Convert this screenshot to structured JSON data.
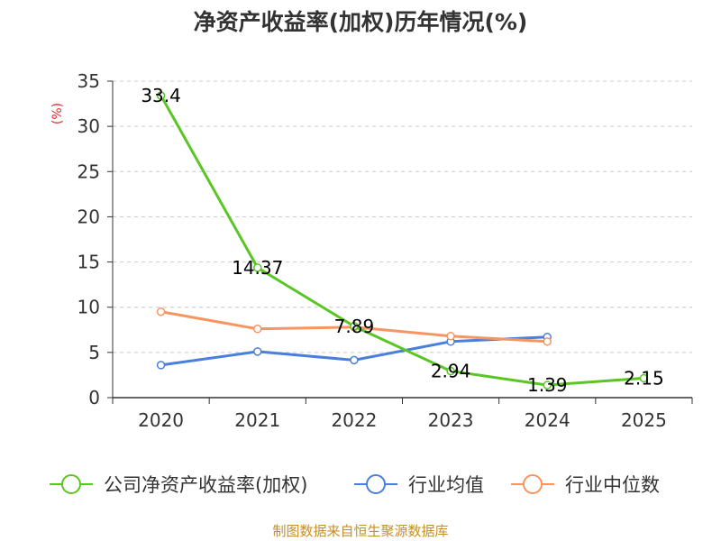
{
  "chart_data": {
    "type": "line",
    "title": "净资产收益率(加权)历年情况(%)",
    "ylabel": "(%)",
    "xlabel": "",
    "categories": [
      "2020",
      "2021",
      "2022",
      "2023",
      "2024",
      "2025"
    ],
    "ylim": [
      0,
      35
    ],
    "yticks": [
      0,
      5,
      10,
      15,
      20,
      25,
      30,
      35
    ],
    "grid": true,
    "legend_position": "bottom",
    "series": [
      {
        "name": "公司净资产收益率(加权)",
        "color": "#5ac625",
        "values": [
          33.4,
          14.37,
          7.89,
          2.94,
          1.39,
          2.15
        ],
        "labels": [
          "33.4",
          "14.37",
          "7.89",
          "2.94",
          "1.39",
          "2.15"
        ]
      },
      {
        "name": "行业均值",
        "color": "#4a7fdc",
        "values": [
          3.6,
          5.1,
          4.15,
          6.2,
          6.7,
          null
        ]
      },
      {
        "name": "行业中位数",
        "color": "#f69560",
        "values": [
          9.5,
          7.6,
          7.8,
          6.8,
          6.2,
          null
        ]
      }
    ],
    "source": "制图数据来自恒生聚源数据库"
  }
}
